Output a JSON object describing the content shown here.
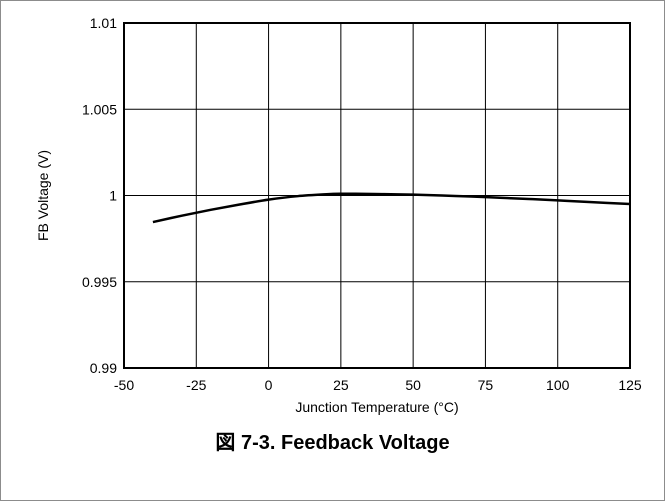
{
  "figure": {
    "caption": "図 7-3. Feedback Voltage"
  },
  "chart_data": {
    "type": "line",
    "title": "",
    "xlabel": "Junction Temperature (°C)",
    "ylabel": "FB Voltage (V)",
    "xlim": [
      -50,
      125
    ],
    "ylim": [
      0.99,
      1.01
    ],
    "xticks": [
      -50,
      -25,
      0,
      25,
      50,
      75,
      100,
      125
    ],
    "xtick_labels": [
      "-50",
      "-25",
      "0",
      "25",
      "50",
      "75",
      "100",
      "125"
    ],
    "yticks": [
      0.99,
      0.995,
      1,
      1.005,
      1.01
    ],
    "ytick_labels": [
      "0.99",
      "0.995",
      "1",
      "1.005",
      "1.01"
    ],
    "grid": true,
    "series": [
      {
        "x": [
          -40,
          -30,
          -20,
          -10,
          0,
          10,
          20,
          25,
          30,
          40,
          50,
          60,
          70,
          80,
          90,
          100,
          110,
          125
        ],
        "y": [
          0.99846,
          0.99883,
          0.99917,
          0.99948,
          0.99976,
          0.99996,
          1.00007,
          1.0001,
          1.0001,
          1.00008,
          1.00005,
          1.0,
          0.99994,
          0.99987,
          0.9998,
          0.99972,
          0.99963,
          0.99951
        ]
      }
    ]
  }
}
